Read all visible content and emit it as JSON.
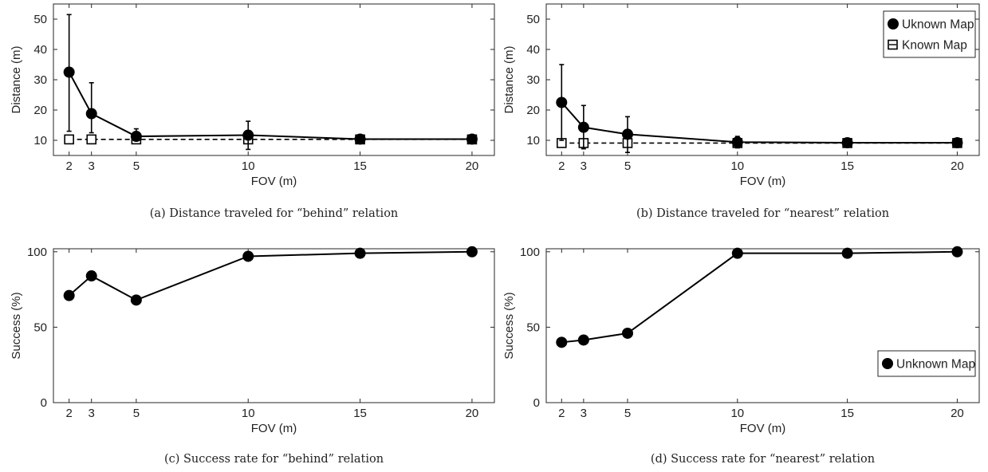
{
  "chart_data": [
    {
      "type": "line",
      "caption": "(a) Distance traveled for “behind” relation",
      "xlabel": "FOV (m)",
      "ylabel": "Distance (m)",
      "x": [
        2,
        3,
        5,
        10,
        15,
        20
      ],
      "xticks": [
        2,
        3,
        5,
        10,
        15,
        20
      ],
      "yticks": [
        10,
        20,
        30,
        40,
        50
      ],
      "xlim": [
        1.3,
        21
      ],
      "ylim": [
        5,
        55
      ],
      "legend": null,
      "series": [
        {
          "values": [
            32.5,
            18.8,
            11.3,
            11.7,
            10.4,
            10.4
          ],
          "err_low": [
            13.0,
            12.5,
            10.0,
            7.0,
            9.3,
            9.3
          ],
          "err_high": [
            51.5,
            29.0,
            13.8,
            16.3,
            11.6,
            11.6
          ],
          "marker": "filled-circle",
          "line": "solid"
        },
        {
          "values": [
            10.3,
            10.3,
            10.3,
            10.3,
            10.3,
            10.3
          ],
          "marker": "open-square",
          "line": "dashed"
        }
      ]
    },
    {
      "type": "line",
      "caption": "(b) Distance traveled for “nearest” relation",
      "xlabel": "FOV (m)",
      "ylabel": "Distance (m)",
      "x": [
        2,
        3,
        5,
        10,
        15,
        20
      ],
      "xticks": [
        2,
        3,
        5,
        10,
        15,
        20
      ],
      "yticks": [
        10,
        20,
        30,
        40,
        50
      ],
      "xlim": [
        1.3,
        21
      ],
      "ylim": [
        5,
        55
      ],
      "legend": "top-right",
      "series": [
        {
          "name": "Uknown Map",
          "values": [
            22.5,
            14.3,
            12.0,
            9.4,
            9.2,
            9.2
          ],
          "err_low": [
            10.0,
            7.2,
            6.0,
            7.5,
            8.3,
            8.3
          ],
          "err_high": [
            35.0,
            21.5,
            17.8,
            11.3,
            10.1,
            10.1
          ],
          "marker": "filled-circle",
          "line": "solid"
        },
        {
          "name": "Known Map",
          "values": [
            9.1,
            9.1,
            9.1,
            9.1,
            9.1,
            9.1
          ],
          "marker": "open-square",
          "line": "dashed"
        }
      ]
    },
    {
      "type": "line",
      "caption": "(c) Success rate for “behind” relation",
      "xlabel": "FOV (m)",
      "ylabel": "Success (%)",
      "x": [
        2,
        3,
        5,
        10,
        15,
        20
      ],
      "xticks": [
        2,
        3,
        5,
        10,
        15,
        20
      ],
      "yticks": [
        0,
        50,
        100
      ],
      "xlim": [
        1.3,
        21
      ],
      "ylim": [
        0,
        102
      ],
      "legend": null,
      "series": [
        {
          "values": [
            71,
            84,
            68,
            97,
            99,
            100
          ],
          "marker": "filled-circle",
          "line": "solid"
        }
      ]
    },
    {
      "type": "line",
      "caption": "(d) Success rate for “nearest” relation",
      "xlabel": "FOV (m)",
      "ylabel": "Success (%)",
      "x": [
        2,
        3,
        5,
        10,
        15,
        20
      ],
      "xticks": [
        2,
        3,
        5,
        10,
        15,
        20
      ],
      "yticks": [
        0,
        50,
        100
      ],
      "xlim": [
        1.3,
        21
      ],
      "ylim": [
        0,
        102
      ],
      "legend": "bottom-right",
      "series": [
        {
          "name": "Unknown Map",
          "values": [
            40,
            41.5,
            46,
            99,
            99,
            100
          ],
          "marker": "filled-circle",
          "line": "solid"
        }
      ]
    }
  ]
}
